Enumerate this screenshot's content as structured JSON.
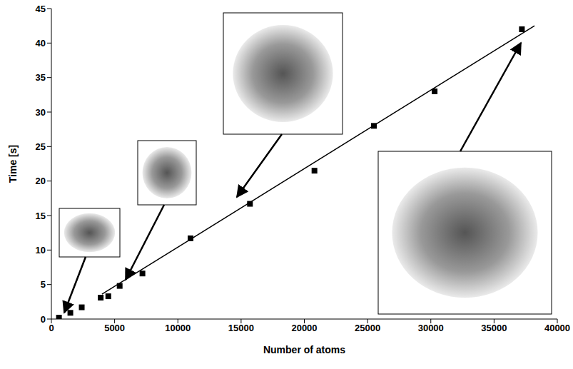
{
  "chart_data": {
    "type": "scatter",
    "x_label": "Number of atoms",
    "y_label": "Time [s]",
    "xlim": [
      0,
      40000
    ],
    "xticks": [
      0,
      5000,
      10000,
      15000,
      20000,
      25000,
      30000,
      35000,
      40000
    ],
    "ylim": [
      0,
      45
    ],
    "yticks": [
      0,
      5,
      10,
      15,
      20,
      25,
      30,
      35,
      40,
      45
    ],
    "grid": false,
    "series": [
      {
        "type": "scatter",
        "marker": "square",
        "color": "#000000",
        "x": [
          600,
          1500,
          2400,
          3900,
          4500,
          5400,
          7200,
          11000,
          15700,
          20800,
          25500,
          30300,
          37200
        ],
        "values": [
          0.2,
          0.9,
          1.7,
          3.1,
          3.3,
          4.8,
          6.6,
          11.7,
          16.7,
          21.5,
          28.0,
          33.0,
          42.0
        ]
      },
      {
        "type": "line",
        "line_style": "solid",
        "color": "#000000",
        "x": [
          4000,
          38200
        ],
        "values": [
          3.6,
          42.5
        ]
      }
    ]
  }
}
